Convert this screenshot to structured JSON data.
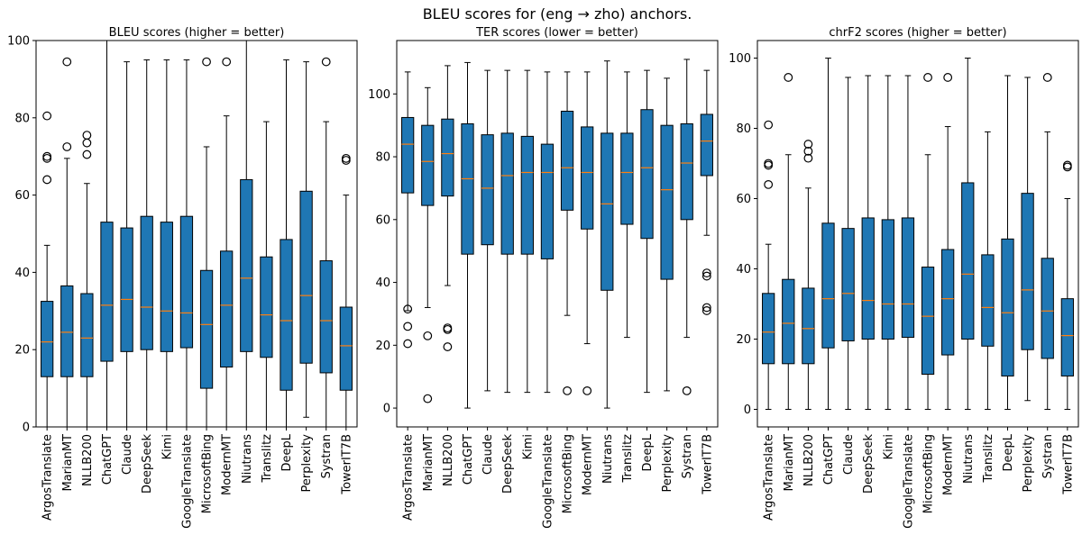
{
  "suptitle": "BLEU scores for (eng → zho) anchors.",
  "colors": {
    "box": "#1f77b4",
    "median": "#ff7f0e"
  },
  "chart_data": [
    {
      "type": "box",
      "title": "BLEU scores (higher = better)",
      "ylim": [
        0,
        100
      ],
      "yticks": [
        0,
        20,
        40,
        60,
        80,
        100
      ],
      "categories": [
        "ArgosTranslate",
        "MarianMT",
        "NLLB200",
        "ChatGPT",
        "Claude",
        "DeepSeek",
        "Kimi",
        "GoogleTranslate",
        "MicrosoftBing",
        "ModernMT",
        "Niutrans",
        "Translitz",
        "DeepL",
        "Perplexity",
        "Systran",
        "TowerIT7B"
      ],
      "boxes": [
        {
          "whislo": 0,
          "q1": 13,
          "med": 22,
          "q3": 32.5,
          "whishi": 47,
          "fliers": [
            64,
            69.5,
            70,
            80.5
          ]
        },
        {
          "whislo": 0,
          "q1": 13,
          "med": 24.5,
          "q3": 36.5,
          "whishi": 69.5,
          "fliers": [
            72.5,
            94.5
          ]
        },
        {
          "whislo": 0,
          "q1": 13,
          "med": 23,
          "q3": 34.5,
          "whishi": 63,
          "fliers": [
            70.5,
            73.5,
            75.5
          ]
        },
        {
          "whislo": 0,
          "q1": 17,
          "med": 31.5,
          "q3": 53,
          "whishi": 100,
          "fliers": []
        },
        {
          "whislo": 0,
          "q1": 19.5,
          "med": 33,
          "q3": 51.5,
          "whishi": 94.5,
          "fliers": []
        },
        {
          "whislo": 0,
          "q1": 20,
          "med": 31,
          "q3": 54.5,
          "whishi": 95,
          "fliers": []
        },
        {
          "whislo": 0,
          "q1": 19.5,
          "med": 30,
          "q3": 53,
          "whishi": 95,
          "fliers": []
        },
        {
          "whislo": 0,
          "q1": 20.5,
          "med": 29.5,
          "q3": 54.5,
          "whishi": 95,
          "fliers": []
        },
        {
          "whislo": 0,
          "q1": 10,
          "med": 26.5,
          "q3": 40.5,
          "whishi": 72.5,
          "fliers": [
            94.5
          ]
        },
        {
          "whislo": 0,
          "q1": 15.5,
          "med": 31.5,
          "q3": 45.5,
          "whishi": 80.5,
          "fliers": [
            94.5
          ]
        },
        {
          "whislo": 0,
          "q1": 19.5,
          "med": 38.5,
          "q3": 64,
          "whishi": 100,
          "fliers": []
        },
        {
          "whislo": 0,
          "q1": 18,
          "med": 29,
          "q3": 44,
          "whishi": 79,
          "fliers": []
        },
        {
          "whislo": 0,
          "q1": 9.5,
          "med": 27.5,
          "q3": 48.5,
          "whishi": 95,
          "fliers": []
        },
        {
          "whislo": 2.5,
          "q1": 16.5,
          "med": 34,
          "q3": 61,
          "whishi": 94.5,
          "fliers": []
        },
        {
          "whislo": 0,
          "q1": 14,
          "med": 27.5,
          "q3": 43,
          "whishi": 79,
          "fliers": [
            94.5
          ]
        },
        {
          "whislo": 0,
          "q1": 9.5,
          "med": 21,
          "q3": 31,
          "whishi": 60,
          "fliers": [
            69,
            69.5
          ]
        }
      ]
    },
    {
      "type": "box",
      "title": "TER scores (lower = better)",
      "ylim": [
        -6,
        117
      ],
      "yticks": [
        0,
        20,
        40,
        60,
        80,
        100
      ],
      "categories": [
        "ArgosTranslate",
        "MarianMT",
        "NLLB200",
        "ChatGPT",
        "Claude",
        "DeepSeek",
        "Kimi",
        "GoogleTranslate",
        "MicrosoftBing",
        "ModernMT",
        "Niutrans",
        "Translitz",
        "DeepL",
        "Perplexity",
        "Systran",
        "TowerIT7B"
      ],
      "boxes": [
        {
          "whislo": 31,
          "q1": 68.5,
          "med": 84,
          "q3": 92.5,
          "whishi": 107,
          "fliers": [
            20.5,
            26,
            31.5
          ]
        },
        {
          "whislo": 32,
          "q1": 64.5,
          "med": 78.5,
          "q3": 90,
          "whishi": 102,
          "fliers": [
            3,
            23
          ]
        },
        {
          "whislo": 39,
          "q1": 67.5,
          "med": 81,
          "q3": 92,
          "whishi": 109,
          "fliers": [
            19.5,
            25,
            25.5
          ]
        },
        {
          "whislo": 0,
          "q1": 49,
          "med": 73,
          "q3": 90.5,
          "whishi": 110,
          "fliers": []
        },
        {
          "whislo": 5.5,
          "q1": 52,
          "med": 70,
          "q3": 87,
          "whishi": 107.5,
          "fliers": []
        },
        {
          "whislo": 5,
          "q1": 49,
          "med": 74,
          "q3": 87.5,
          "whishi": 107.5,
          "fliers": []
        },
        {
          "whislo": 5,
          "q1": 49,
          "med": 75,
          "q3": 86.5,
          "whishi": 107.5,
          "fliers": []
        },
        {
          "whislo": 5,
          "q1": 47.5,
          "med": 75,
          "q3": 84,
          "whishi": 107,
          "fliers": []
        },
        {
          "whislo": 29.5,
          "q1": 63,
          "med": 76.5,
          "q3": 94.5,
          "whishi": 107,
          "fliers": [
            5.5
          ]
        },
        {
          "whislo": 20.5,
          "q1": 57,
          "med": 75,
          "q3": 89.5,
          "whishi": 107,
          "fliers": [
            5.5
          ]
        },
        {
          "whislo": 0,
          "q1": 37.5,
          "med": 65,
          "q3": 87.5,
          "whishi": 110.5,
          "fliers": []
        },
        {
          "whislo": 22.5,
          "q1": 58.5,
          "med": 75,
          "q3": 87.5,
          "whishi": 107,
          "fliers": []
        },
        {
          "whislo": 5,
          "q1": 54,
          "med": 76.5,
          "q3": 95,
          "whishi": 107.5,
          "fliers": []
        },
        {
          "whislo": 5.5,
          "q1": 41,
          "med": 69.5,
          "q3": 90,
          "whishi": 105,
          "fliers": []
        },
        {
          "whislo": 22.5,
          "q1": 60,
          "med": 78,
          "q3": 90.5,
          "whishi": 111,
          "fliers": [
            5.5
          ]
        },
        {
          "whislo": 55,
          "q1": 74,
          "med": 85,
          "q3": 93.5,
          "whishi": 107.5,
          "fliers": [
            31,
            32,
            42,
            43
          ]
        }
      ]
    },
    {
      "type": "box",
      "title": "chrF2 scores (higher = better)",
      "ylim": [
        -5,
        105
      ],
      "yticks": [
        0,
        20,
        40,
        60,
        80,
        100
      ],
      "categories": [
        "ArgosTranslate",
        "MarianMT",
        "NLLB200",
        "ChatGPT",
        "Claude",
        "DeepSeek",
        "Kimi",
        "GoogleTranslate",
        "MicrosoftBing",
        "ModernMT",
        "Niutrans",
        "Translitz",
        "DeepL",
        "Perplexity",
        "Systran",
        "TowerIT7B"
      ],
      "boxes": [
        {
          "whislo": 0,
          "q1": 13,
          "med": 22,
          "q3": 33,
          "whishi": 47,
          "fliers": [
            64,
            69.5,
            70,
            81
          ]
        },
        {
          "whislo": 0,
          "q1": 13,
          "med": 24.5,
          "q3": 37,
          "whishi": 72.5,
          "fliers": [
            94.5
          ]
        },
        {
          "whislo": 0,
          "q1": 13,
          "med": 23,
          "q3": 34.5,
          "whishi": 63,
          "fliers": [
            71.5,
            73.5,
            75.5
          ]
        },
        {
          "whislo": 0,
          "q1": 17.5,
          "med": 31.5,
          "q3": 53,
          "whishi": 100,
          "fliers": []
        },
        {
          "whislo": 0,
          "q1": 19.5,
          "med": 33,
          "q3": 51.5,
          "whishi": 94.5,
          "fliers": []
        },
        {
          "whislo": 0,
          "q1": 20,
          "med": 31,
          "q3": 54.5,
          "whishi": 95,
          "fliers": []
        },
        {
          "whislo": 0,
          "q1": 20,
          "med": 30,
          "q3": 54,
          "whishi": 95,
          "fliers": []
        },
        {
          "whislo": 0,
          "q1": 20.5,
          "med": 30,
          "q3": 54.5,
          "whishi": 95,
          "fliers": []
        },
        {
          "whislo": 0,
          "q1": 10,
          "med": 26.5,
          "q3": 40.5,
          "whishi": 72.5,
          "fliers": [
            94.5
          ]
        },
        {
          "whislo": 0,
          "q1": 15.5,
          "med": 31.5,
          "q3": 45.5,
          "whishi": 80.5,
          "fliers": [
            94.5
          ]
        },
        {
          "whislo": 0,
          "q1": 20,
          "med": 38.5,
          "q3": 64.5,
          "whishi": 100,
          "fliers": []
        },
        {
          "whislo": 0,
          "q1": 18,
          "med": 29,
          "q3": 44,
          "whishi": 79,
          "fliers": []
        },
        {
          "whislo": 0,
          "q1": 9.5,
          "med": 27.5,
          "q3": 48.5,
          "whishi": 95,
          "fliers": []
        },
        {
          "whislo": 2.5,
          "q1": 17,
          "med": 34,
          "q3": 61.5,
          "whishi": 94.5,
          "fliers": []
        },
        {
          "whislo": 0,
          "q1": 14.5,
          "med": 28,
          "q3": 43,
          "whishi": 79,
          "fliers": [
            94.5
          ]
        },
        {
          "whislo": 0,
          "q1": 9.5,
          "med": 21,
          "q3": 31.5,
          "whishi": 60,
          "fliers": [
            69,
            69.5
          ]
        }
      ]
    }
  ]
}
